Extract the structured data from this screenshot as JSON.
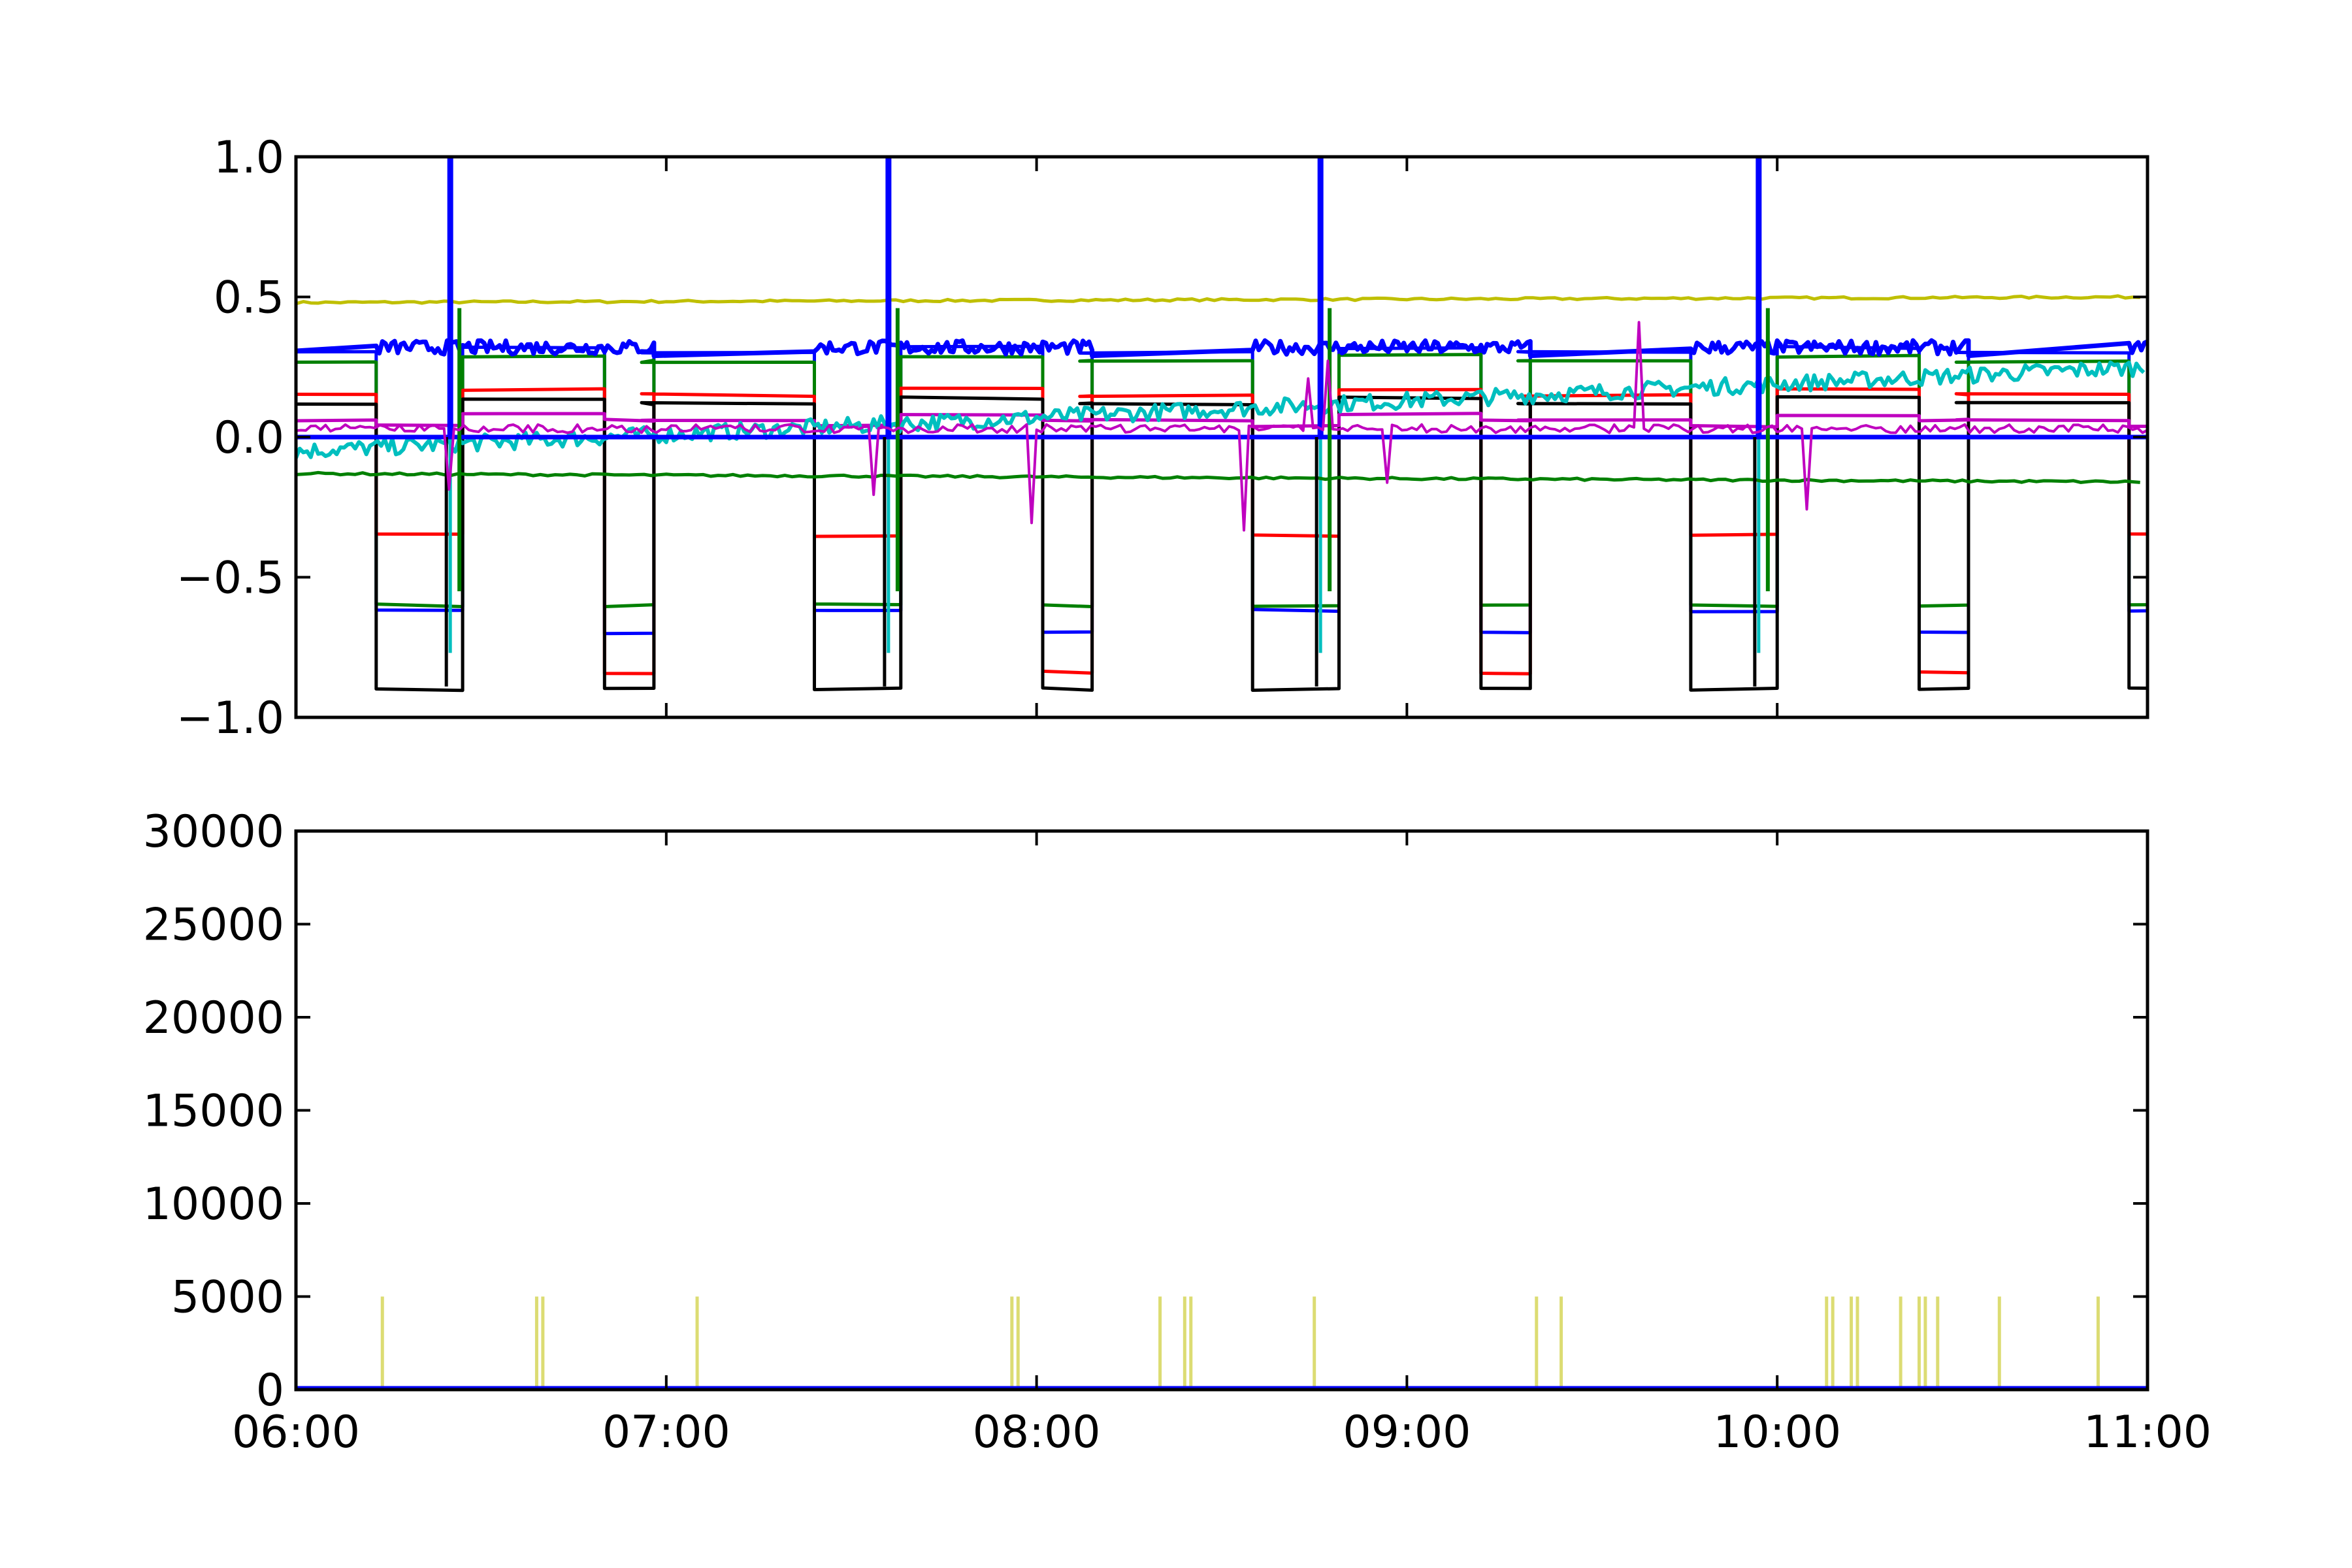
{
  "chart_data": [
    {
      "type": "line",
      "xlim": [
        "06:00",
        "11:00"
      ],
      "ylim": [
        -1.0,
        1.0
      ],
      "yticks": [
        "1.0",
        "0.5",
        "0.0",
        "−0.5",
        "−1.0"
      ],
      "xticks": [
        "06:00",
        "07:00",
        "08:00",
        "09:00",
        "10:00",
        "11:00"
      ],
      "show_xtick_labels": false,
      "grid": false,
      "legend": "none",
      "colors": {
        "blue": "#0000ff",
        "green": "#008000",
        "red": "#ff0000",
        "cyan": "#00bfbf",
        "magenta": "#bf00bf",
        "yellow": "#bfbf00",
        "black": "#000000"
      },
      "spike_times": [
        "06:25",
        "07:36",
        "08:46",
        "09:57"
      ],
      "cycle_period_minutes": 71,
      "series": [
        {
          "color": "yellow",
          "start": 0.48,
          "end": 0.5
        },
        {
          "color": "blue",
          "base": 0.3,
          "low": -0.62,
          "low2": -0.7
        },
        {
          "color": "green",
          "base": 0.27,
          "low": -0.6
        },
        {
          "color": "red",
          "base": 0.15,
          "low": -0.35,
          "low2": -0.84
        },
        {
          "color": "black",
          "base": 0.12,
          "low": -0.9
        },
        {
          "color": "magenta",
          "base": 0.06
        },
        {
          "color": "cyan",
          "start": -0.05,
          "end": 0.25,
          "low": -0.77
        },
        {
          "color": "green",
          "start": -0.13,
          "end": -0.16
        }
      ]
    },
    {
      "type": "bar",
      "xlim": [
        "06:00",
        "11:00"
      ],
      "ylim": [
        0,
        30000
      ],
      "yticks": [
        "30000",
        "25000",
        "20000",
        "15000",
        "10000",
        "5000",
        "0"
      ],
      "xticks": [
        "06:00",
        "07:00",
        "08:00",
        "09:00",
        "10:00",
        "11:00"
      ],
      "grid": false,
      "legend": "none",
      "spike_color": "#bfbf00",
      "baseline_color": "#0000ff",
      "spikes": [
        {
          "time": "06:14",
          "value": 5000
        },
        {
          "time": "06:39",
          "value": 5000
        },
        {
          "time": "06:40",
          "value": 5000
        },
        {
          "time": "07:05",
          "value": 5000
        },
        {
          "time": "07:56",
          "value": 5000
        },
        {
          "time": "07:57",
          "value": 5000
        },
        {
          "time": "08:20",
          "value": 5000
        },
        {
          "time": "08:24",
          "value": 5000
        },
        {
          "time": "08:25",
          "value": 5000
        },
        {
          "time": "08:45",
          "value": 5000
        },
        {
          "time": "09:21",
          "value": 5000
        },
        {
          "time": "09:25",
          "value": 5000
        },
        {
          "time": "10:08",
          "value": 5000
        },
        {
          "time": "10:09",
          "value": 5000
        },
        {
          "time": "10:12",
          "value": 5000
        },
        {
          "time": "10:13",
          "value": 5000
        },
        {
          "time": "10:20",
          "value": 5000
        },
        {
          "time": "10:23",
          "value": 5000
        },
        {
          "time": "10:24",
          "value": 5000
        },
        {
          "time": "10:26",
          "value": 5000
        },
        {
          "time": "10:36",
          "value": 5000
        },
        {
          "time": "10:52",
          "value": 5000
        }
      ]
    }
  ]
}
